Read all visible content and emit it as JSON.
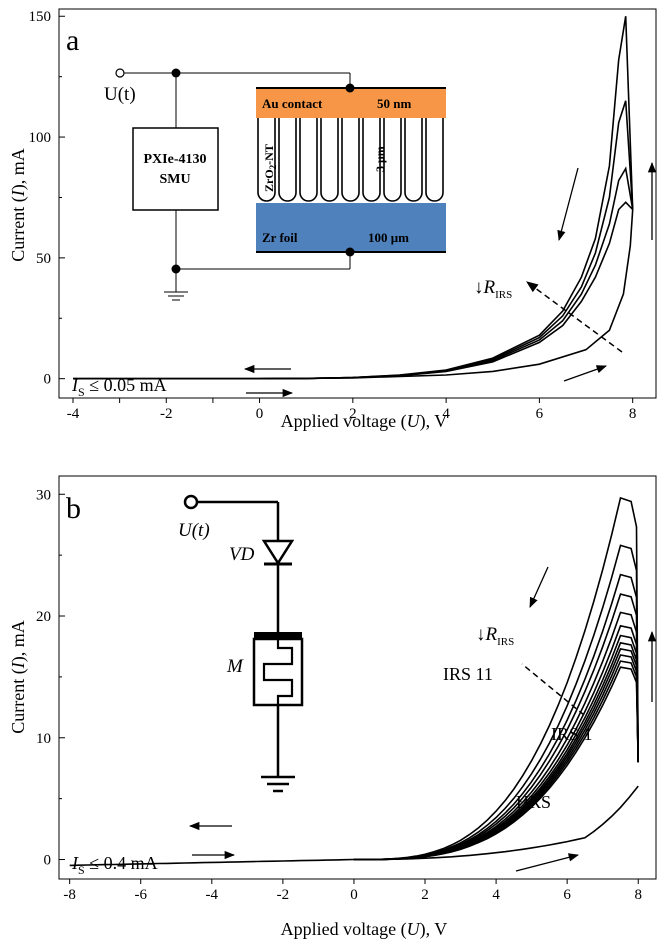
{
  "chart_data": [
    {
      "type": "line",
      "panel_label": "a",
      "xlabel_parts": [
        "Applied voltage (",
        "U",
        "), V"
      ],
      "ylabel_parts": [
        "Current (",
        "I",
        "), mA"
      ],
      "xlim": [
        -4.3,
        8.5
      ],
      "ylim": [
        -8,
        153
      ],
      "xticks": [
        -4,
        -2,
        0,
        2,
        4,
        6,
        8
      ],
      "yticks": [
        0,
        50,
        100,
        150
      ],
      "scale_x_ticks": [
        -4,
        -3,
        -2,
        -1,
        0,
        2,
        4,
        6,
        8
      ],
      "series": [
        {
          "x": [
            0,
            2,
            4,
            5,
            6,
            7,
            7.5,
            7.8,
            7.95,
            8.0
          ],
          "y": [
            0,
            0.3,
            1.5,
            3,
            6,
            12,
            20,
            35,
            55,
            70
          ]
        },
        {
          "x": [
            8.0,
            7.85,
            7.7,
            7.5,
            7.2,
            6.9,
            6.5,
            6.0,
            5.0,
            4.0,
            3.0,
            2.0,
            1.0,
            0,
            -2,
            -4
          ],
          "y": [
            70,
            73,
            70,
            56,
            42,
            32,
            22,
            15,
            7,
            3,
            1.2,
            0.4,
            0.1,
            0,
            0,
            0
          ]
        },
        {
          "x": [
            8.0,
            7.85,
            7.7,
            7.5,
            7.2,
            6.9,
            6.5,
            6.0,
            5.0,
            4.0,
            3.0,
            2.0,
            1.0,
            0,
            -2,
            -4
          ],
          "y": [
            70,
            87,
            82,
            64,
            47,
            35,
            24,
            16,
            7.5,
            3.2,
            1.3,
            0.45,
            0.1,
            0,
            0,
            0
          ]
        },
        {
          "x": [
            8.0,
            7.85,
            7.7,
            7.5,
            7.2,
            6.9,
            6.5,
            6.0,
            5.0,
            4.0,
            3.0,
            2.0,
            1.0,
            0,
            -2,
            -4
          ],
          "y": [
            70,
            115,
            106,
            75,
            52,
            38,
            26,
            17,
            8,
            3.4,
            1.4,
            0.5,
            0.1,
            0,
            0,
            0
          ]
        },
        {
          "x": [
            8.0,
            7.85,
            7.7,
            7.5,
            7.2,
            6.9,
            6.5,
            6.0,
            5.0,
            4.0,
            3.0,
            2.0,
            1.0,
            0,
            -2,
            -4
          ],
          "y": [
            70,
            150,
            132,
            88,
            58,
            42,
            28,
            18,
            8.5,
            3.6,
            1.5,
            0.5,
            0.1,
            0,
            0,
            0
          ]
        }
      ],
      "annotations": {
        "compliance_prefix": "I",
        "compliance_sub": "S",
        "compliance_rest": " ≤ 0.05 mA",
        "r_arrow": "↓",
        "r_symbol": "R",
        "r_sub": "IRS"
      },
      "inset": {
        "source_label": "U(t)",
        "smu_line1": "PXIe-4130",
        "smu_line2": "SMU",
        "contact_label": "Au contact",
        "contact_thickness": "50 nm",
        "nt_label": "ZrO",
        "nt_sub": "2",
        "nt_rest": "-NT",
        "nt_thickness": "3 μm",
        "foil_label": "Zr foil",
        "foil_thickness": "100 μm",
        "contact_color": "#f79646",
        "foil_color": "#4f81bd"
      }
    },
    {
      "type": "line",
      "panel_label": "b",
      "xlabel_parts": [
        "Applied voltage (",
        "U",
        "), V"
      ],
      "ylabel_parts": [
        "Current (",
        "I",
        "), mA"
      ],
      "xlim": [
        -8.3,
        8.5
      ],
      "ylim": [
        -1.6,
        31.5
      ],
      "xticks": [
        -8,
        -4,
        0,
        4,
        8
      ],
      "xtick_labels": [
        "-8",
        "-4",
        "0",
        "4",
        "8"
      ],
      "extra_xticks": [
        -6,
        -2,
        2,
        6
      ],
      "extra_xtick_labels": [
        "-6",
        "-2",
        "2",
        "6"
      ],
      "yticks": [
        0,
        10,
        20,
        30
      ],
      "series_peaks": [
        15.8,
        16.3,
        16.8,
        17.3,
        17.8,
        18.4,
        19.2,
        20.3,
        21.8,
        23.4,
        25.8,
        29.7
      ],
      "series_names": [
        "IRS 1",
        "IRS 11",
        "HRS"
      ],
      "annotations": {
        "compliance_prefix": "I",
        "compliance_sub": "S",
        "compliance_rest": " ≤ 0.4 mA",
        "r_arrow": "↓",
        "r_symbol": "R",
        "r_sub": "IRS"
      },
      "inset": {
        "source_label": "U(t)",
        "diode_label": "VD",
        "memristor_label": "M"
      }
    }
  ]
}
